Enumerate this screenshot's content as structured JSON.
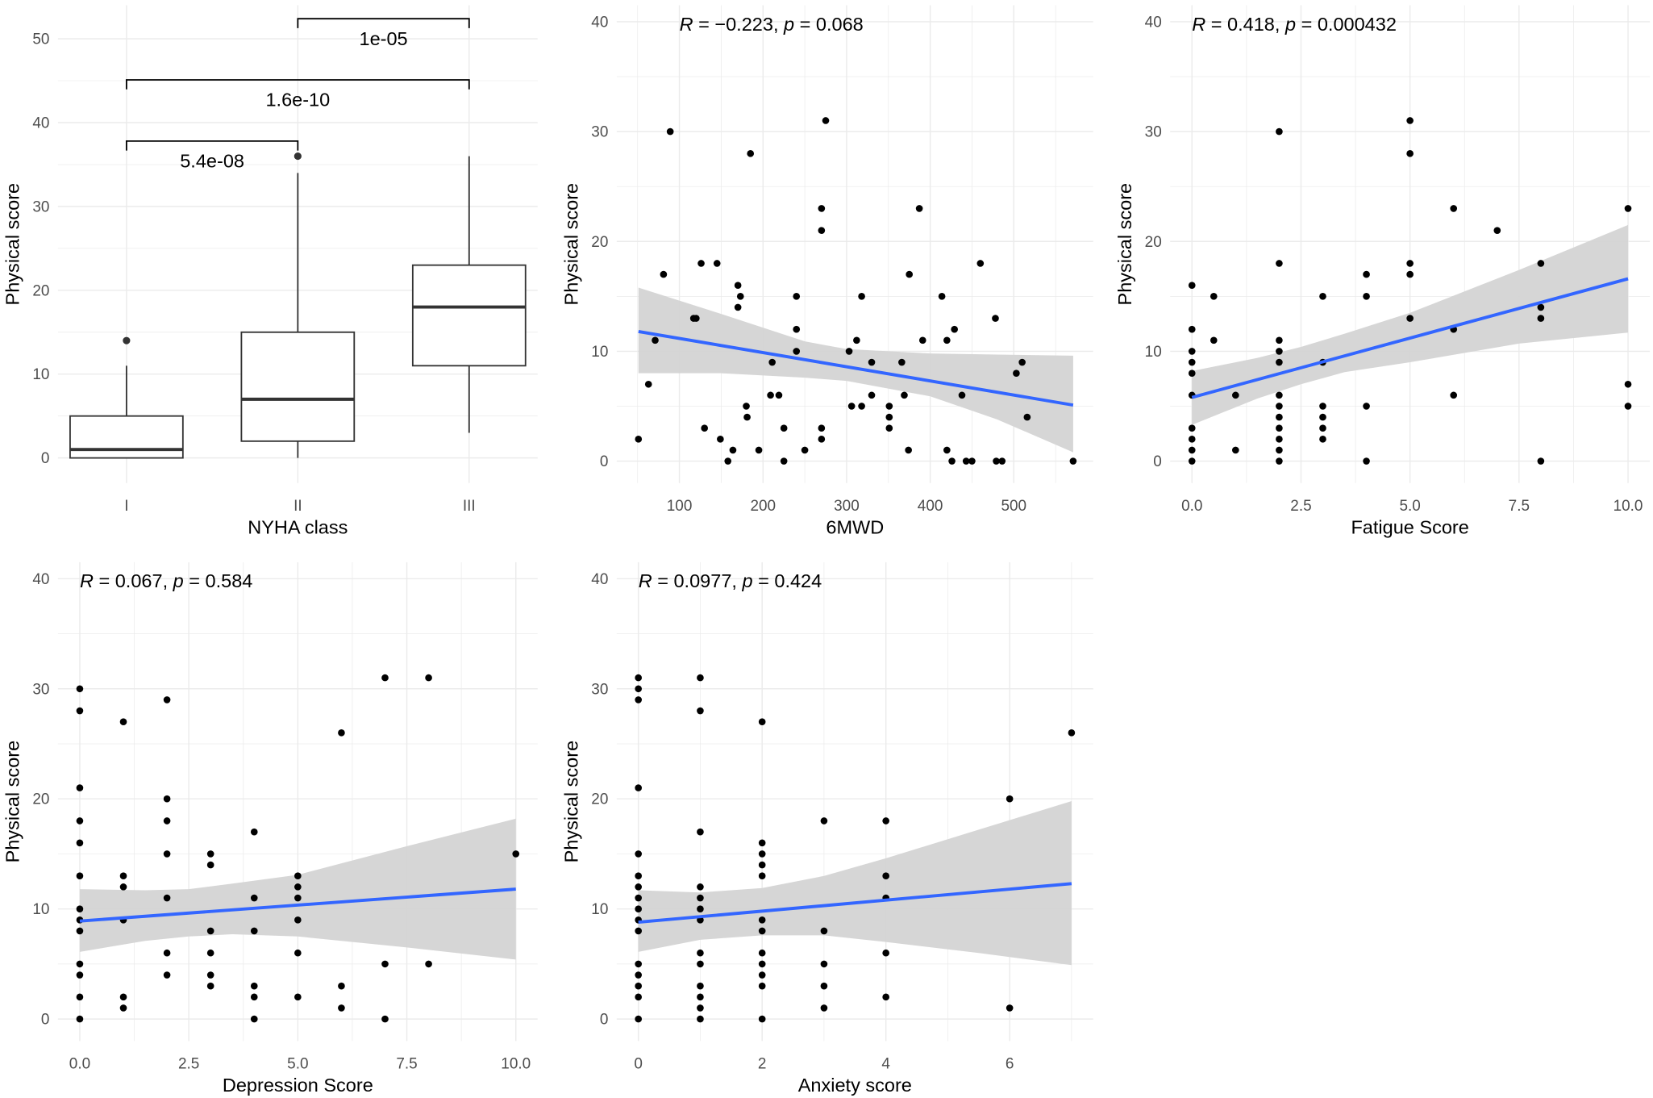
{
  "colors": {
    "point": "#000000",
    "fit_line": "#3366FF",
    "ci_band": "#D4D4D4",
    "grid": "#EBEBEB",
    "tick_text": "#4D4D4D",
    "box_line": "#333333"
  },
  "chart_data": [
    {
      "type": "box",
      "xlabel": "NYHA class",
      "ylabel": "Physical score",
      "categories": [
        "I",
        "II",
        "III"
      ],
      "yticks": [
        0,
        10,
        20,
        30,
        40,
        50
      ],
      "ylim": [
        -3,
        54
      ],
      "boxes": [
        {
          "category": "I",
          "lower_whisker": 0,
          "q1": 0,
          "median": 1,
          "q3": 5,
          "upper_whisker": 11,
          "outliers": [
            14
          ]
        },
        {
          "category": "II",
          "lower_whisker": 0,
          "q1": 2,
          "median": 7,
          "q3": 15,
          "upper_whisker": 34,
          "outliers": [
            36
          ]
        },
        {
          "category": "III",
          "lower_whisker": 3,
          "q1": 11,
          "median": 18,
          "q3": 23,
          "upper_whisker": 36,
          "outliers": []
        }
      ],
      "comparisons": [
        {
          "from": "I",
          "to": "II",
          "y": 37.8,
          "label": "5.4e-08"
        },
        {
          "from": "I",
          "to": "III",
          "y": 45.1,
          "label": "1.6e-10"
        },
        {
          "from": "II",
          "to": "III",
          "y": 52.4,
          "label": "1e-05"
        }
      ]
    },
    {
      "type": "scatter",
      "xlabel": "6MWD",
      "ylabel": "Physical score",
      "annotation": "R = −0.223, p = 0.068",
      "xticks": [
        100,
        200,
        300,
        400,
        500
      ],
      "xtick_labels": [
        "100",
        "200",
        "300",
        "400",
        "500"
      ],
      "yticks": [
        0,
        10,
        20,
        30,
        40
      ],
      "xlim": [
        25,
        595
      ],
      "ylim": [
        -2,
        41.5
      ],
      "points": [
        [
          51,
          2
        ],
        [
          89,
          30
        ],
        [
          63,
          7
        ],
        [
          71,
          11
        ],
        [
          81,
          17
        ],
        [
          117,
          13
        ],
        [
          120,
          13
        ],
        [
          126,
          18
        ],
        [
          130,
          3
        ],
        [
          145,
          18
        ],
        [
          149,
          2
        ],
        [
          158,
          0
        ],
        [
          164,
          1
        ],
        [
          170,
          16
        ],
        [
          173,
          15
        ],
        [
          170,
          14
        ],
        [
          180,
          5
        ],
        [
          181,
          4
        ],
        [
          185,
          28
        ],
        [
          195,
          1
        ],
        [
          209,
          6
        ],
        [
          211,
          9
        ],
        [
          219,
          6
        ],
        [
          225,
          3
        ],
        [
          225,
          0
        ],
        [
          240,
          15
        ],
        [
          240,
          12
        ],
        [
          240,
          10
        ],
        [
          250,
          1
        ],
        [
          270,
          23
        ],
        [
          270,
          21
        ],
        [
          270,
          3
        ],
        [
          270,
          2
        ],
        [
          275,
          31
        ],
        [
          303,
          10
        ],
        [
          306,
          5
        ],
        [
          312,
          11
        ],
        [
          318,
          15
        ],
        [
          318,
          5
        ],
        [
          330,
          9
        ],
        [
          330,
          6
        ],
        [
          351,
          5
        ],
        [
          351,
          4
        ],
        [
          351,
          3
        ],
        [
          366,
          9
        ],
        [
          369,
          6
        ],
        [
          374,
          1
        ],
        [
          375,
          17
        ],
        [
          387,
          23
        ],
        [
          391,
          11
        ],
        [
          414,
          15
        ],
        [
          420,
          11
        ],
        [
          420,
          1
        ],
        [
          426,
          0
        ],
        [
          429,
          12
        ],
        [
          438,
          6
        ],
        [
          443,
          0
        ],
        [
          450,
          0
        ],
        [
          460,
          18
        ],
        [
          478,
          13
        ],
        [
          479,
          0
        ],
        [
          486,
          0
        ],
        [
          503,
          8
        ],
        [
          510,
          9
        ],
        [
          516,
          4
        ],
        [
          571,
          0
        ]
      ],
      "fit": [
        [
          51,
          11.8
        ],
        [
          571,
          5.1
        ]
      ],
      "ci": [
        [
          51,
          8.0,
          15.8
        ],
        [
          150,
          8.0,
          13.4
        ],
        [
          250,
          7.6,
          10.9
        ],
        [
          300,
          7.3,
          10.2
        ],
        [
          400,
          5.9,
          9.8
        ],
        [
          480,
          3.8,
          9.7
        ],
        [
          571,
          0.8,
          9.6
        ]
      ]
    },
    {
      "type": "scatter",
      "xlabel": "Fatigue Score",
      "ylabel": "Physical score",
      "annotation": "R = 0.418, p = 0.000432",
      "xticks": [
        0,
        2.5,
        5,
        7.5,
        10
      ],
      "xtick_labels": [
        "0.0",
        "2.5",
        "5.0",
        "7.5",
        "10.0"
      ],
      "yticks": [
        0,
        10,
        20,
        30,
        40
      ],
      "xlim": [
        -0.5,
        10.5
      ],
      "ylim": [
        -2,
        41.5
      ],
      "points": [
        [
          0,
          16
        ],
        [
          0,
          12
        ],
        [
          0,
          10
        ],
        [
          0,
          9
        ],
        [
          0,
          8
        ],
        [
          0,
          6
        ],
        [
          0,
          3
        ],
        [
          0,
          2
        ],
        [
          0,
          1
        ],
        [
          0,
          0
        ],
        [
          0.5,
          15
        ],
        [
          0.5,
          11
        ],
        [
          1,
          6
        ],
        [
          1,
          1
        ],
        [
          2,
          30
        ],
        [
          2,
          18
        ],
        [
          2,
          11
        ],
        [
          2,
          10
        ],
        [
          2,
          9
        ],
        [
          2,
          6
        ],
        [
          2,
          5
        ],
        [
          2,
          4
        ],
        [
          2,
          3
        ],
        [
          2,
          2
        ],
        [
          2,
          1
        ],
        [
          2,
          0
        ],
        [
          3,
          15
        ],
        [
          3,
          9
        ],
        [
          3,
          5
        ],
        [
          3,
          4
        ],
        [
          3,
          3
        ],
        [
          3,
          2
        ],
        [
          4,
          17
        ],
        [
          4,
          15
        ],
        [
          4,
          5
        ],
        [
          4,
          0
        ],
        [
          5,
          31
        ],
        [
          5,
          28
        ],
        [
          5,
          18
        ],
        [
          5,
          17
        ],
        [
          5,
          13
        ],
        [
          6,
          23
        ],
        [
          6,
          12
        ],
        [
          6,
          6
        ],
        [
          7,
          21
        ],
        [
          8,
          18
        ],
        [
          8,
          14
        ],
        [
          8,
          13
        ],
        [
          8,
          0
        ],
        [
          10,
          23
        ],
        [
          10,
          7
        ],
        [
          10,
          5
        ]
      ],
      "fit": [
        [
          0,
          5.8
        ],
        [
          10,
          16.6
        ]
      ],
      "ci": [
        [
          0,
          3.3,
          8.2
        ],
        [
          1.5,
          5.7,
          9.4
        ],
        [
          2.5,
          7.0,
          10.4
        ],
        [
          3.5,
          8.1,
          11.6
        ],
        [
          5,
          9.0,
          13.5
        ],
        [
          7.5,
          10.7,
          17.4
        ],
        [
          10,
          11.7,
          21.5
        ]
      ]
    },
    {
      "type": "scatter",
      "xlabel": "Depression Score",
      "ylabel": "Physical score",
      "annotation": "R = 0.067, p = 0.584",
      "xticks": [
        0,
        2.5,
        5,
        7.5,
        10
      ],
      "xtick_labels": [
        "0.0",
        "2.5",
        "5.0",
        "7.5",
        "10.0"
      ],
      "yticks": [
        0,
        10,
        20,
        30,
        40
      ],
      "xlim": [
        -0.5,
        10.5
      ],
      "ylim": [
        -2,
        41.5
      ],
      "points": [
        [
          0,
          30
        ],
        [
          0,
          28
        ],
        [
          0,
          21
        ],
        [
          0,
          18
        ],
        [
          0,
          16
        ],
        [
          0,
          13
        ],
        [
          0,
          10
        ],
        [
          0,
          9
        ],
        [
          0,
          8
        ],
        [
          0,
          5
        ],
        [
          0,
          4
        ],
        [
          0,
          2
        ],
        [
          0,
          0
        ],
        [
          1,
          27
        ],
        [
          1,
          13
        ],
        [
          1,
          12
        ],
        [
          1,
          9
        ],
        [
          1,
          2
        ],
        [
          1,
          1
        ],
        [
          2,
          29
        ],
        [
          2,
          20
        ],
        [
          2,
          18
        ],
        [
          2,
          15
        ],
        [
          2,
          11
        ],
        [
          2,
          6
        ],
        [
          2,
          4
        ],
        [
          3,
          15
        ],
        [
          3,
          14
        ],
        [
          3,
          8
        ],
        [
          3,
          6
        ],
        [
          3,
          4
        ],
        [
          3,
          3
        ],
        [
          4,
          17
        ],
        [
          4,
          11
        ],
        [
          4,
          8
        ],
        [
          4,
          3
        ],
        [
          4,
          2
        ],
        [
          4,
          0
        ],
        [
          5,
          13
        ],
        [
          5,
          12
        ],
        [
          5,
          11
        ],
        [
          5,
          9
        ],
        [
          5,
          6
        ],
        [
          5,
          2
        ],
        [
          6,
          26
        ],
        [
          6,
          3
        ],
        [
          6,
          1
        ],
        [
          7,
          31
        ],
        [
          7,
          5
        ],
        [
          7,
          0
        ],
        [
          8,
          31
        ],
        [
          8,
          5
        ],
        [
          10,
          15
        ]
      ],
      "fit": [
        [
          0,
          8.9
        ],
        [
          10,
          11.8
        ]
      ],
      "ci": [
        [
          0,
          6.1,
          11.8
        ],
        [
          1.5,
          7.1,
          11.7
        ],
        [
          2.5,
          7.5,
          11.8
        ],
        [
          3.5,
          7.7,
          12.3
        ],
        [
          5,
          7.5,
          13.1
        ],
        [
          7.5,
          6.5,
          15.7
        ],
        [
          10,
          5.4,
          18.2
        ]
      ]
    },
    {
      "type": "scatter",
      "xlabel": "Anxiety score",
      "ylabel": "Physical score",
      "annotation": "R = 0.0977, p = 0.424",
      "xticks": [
        0,
        2,
        4,
        6
      ],
      "xtick_labels": [
        "0",
        "2",
        "4",
        "6"
      ],
      "yticks": [
        0,
        10,
        20,
        30,
        40
      ],
      "xlim": [
        -0.35,
        7.35
      ],
      "ylim": [
        -2,
        41.5
      ],
      "points": [
        [
          0,
          31
        ],
        [
          0,
          30
        ],
        [
          0,
          29
        ],
        [
          0,
          21
        ],
        [
          0,
          15
        ],
        [
          0,
          13
        ],
        [
          0,
          12
        ],
        [
          0,
          11
        ],
        [
          0,
          10
        ],
        [
          0,
          9
        ],
        [
          0,
          8
        ],
        [
          0,
          5
        ],
        [
          0,
          4
        ],
        [
          0,
          3
        ],
        [
          0,
          2
        ],
        [
          0,
          0
        ],
        [
          1,
          31
        ],
        [
          1,
          28
        ],
        [
          1,
          17
        ],
        [
          1,
          12
        ],
        [
          1,
          11
        ],
        [
          1,
          10
        ],
        [
          1,
          9
        ],
        [
          1,
          6
        ],
        [
          1,
          5
        ],
        [
          1,
          3
        ],
        [
          1,
          2
        ],
        [
          1,
          1
        ],
        [
          1,
          0
        ],
        [
          2,
          27
        ],
        [
          2,
          16
        ],
        [
          2,
          15
        ],
        [
          2,
          14
        ],
        [
          2,
          13
        ],
        [
          2,
          9
        ],
        [
          2,
          8
        ],
        [
          2,
          6
        ],
        [
          2,
          5
        ],
        [
          2,
          4
        ],
        [
          2,
          3
        ],
        [
          2,
          0
        ],
        [
          3,
          18
        ],
        [
          3,
          8
        ],
        [
          3,
          5
        ],
        [
          3,
          3
        ],
        [
          3,
          1
        ],
        [
          4,
          18
        ],
        [
          4,
          13
        ],
        [
          4,
          11
        ],
        [
          4,
          6
        ],
        [
          4,
          2
        ],
        [
          6,
          20
        ],
        [
          6,
          1
        ],
        [
          7,
          26
        ]
      ],
      "fit": [
        [
          0,
          8.8
        ],
        [
          7,
          12.3
        ]
      ],
      "ci": [
        [
          0,
          6.1,
          11.7
        ],
        [
          1,
          7.2,
          11.5
        ],
        [
          2,
          7.6,
          11.9
        ],
        [
          3,
          7.6,
          13.0
        ],
        [
          4,
          7.0,
          14.6
        ],
        [
          5.5,
          6.0,
          17.2
        ],
        [
          7,
          4.9,
          19.8
        ]
      ]
    }
  ]
}
